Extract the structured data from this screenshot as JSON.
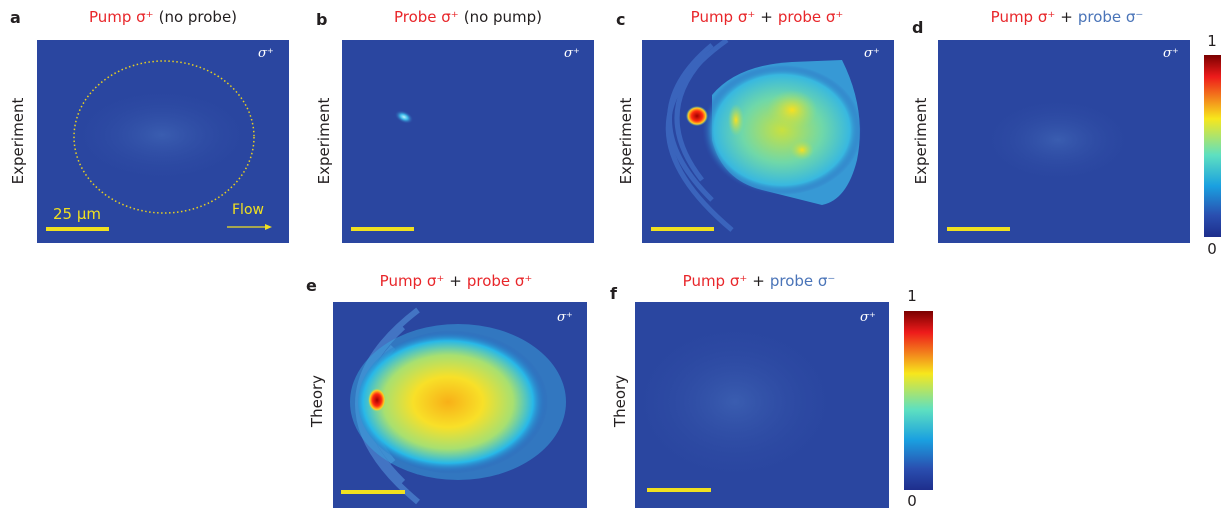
{
  "panels": [
    {
      "letter": "a",
      "title": [
        {
          "text": "Pump σ⁺",
          "color": "#e8262a"
        },
        {
          "text": "(no probe)",
          "color": "#231f20"
        }
      ],
      "corner": "σ⁺",
      "row_label": "Experiment",
      "scale_label": "25 μm",
      "flow_label": "Flow"
    },
    {
      "letter": "b",
      "title": [
        {
          "text": "Probe σ⁺",
          "color": "#e8262a"
        },
        {
          "text": "(no pump)",
          "color": "#231f20"
        }
      ],
      "corner": "σ⁺",
      "row_label": "Experiment"
    },
    {
      "letter": "c",
      "title": [
        {
          "text": "Pump σ⁺",
          "color": "#e8262a"
        },
        {
          "text": "+",
          "color": "#231f20"
        },
        {
          "text": "probe σ⁺",
          "color": "#e8262a"
        }
      ],
      "corner": "σ⁺",
      "row_label": "Experiment"
    },
    {
      "letter": "d",
      "title": [
        {
          "text": "Pump σ⁺",
          "color": "#e8262a"
        },
        {
          "text": "+",
          "color": "#231f20"
        },
        {
          "text": "probe σ⁻",
          "color": "#4a74b8"
        }
      ],
      "corner": "σ⁺",
      "row_label": "Experiment"
    },
    {
      "letter": "e",
      "title": [
        {
          "text": "Pump σ⁺",
          "color": "#e8262a"
        },
        {
          "text": "+",
          "color": "#231f20"
        },
        {
          "text": "probe σ⁺",
          "color": "#e8262a"
        }
      ],
      "corner": "σ⁺",
      "row_label": "Theory"
    },
    {
      "letter": "f",
      "title": [
        {
          "text": "Pump σ⁺",
          "color": "#e8262a"
        },
        {
          "text": "+",
          "color": "#231f20"
        },
        {
          "text": "probe σ⁻",
          "color": "#4a74b8"
        }
      ],
      "corner": "σ⁺",
      "row_label": "Theory"
    }
  ],
  "colorbars": [
    {
      "max": 1,
      "min": 0
    },
    {
      "max": 1,
      "min": 0
    }
  ]
}
